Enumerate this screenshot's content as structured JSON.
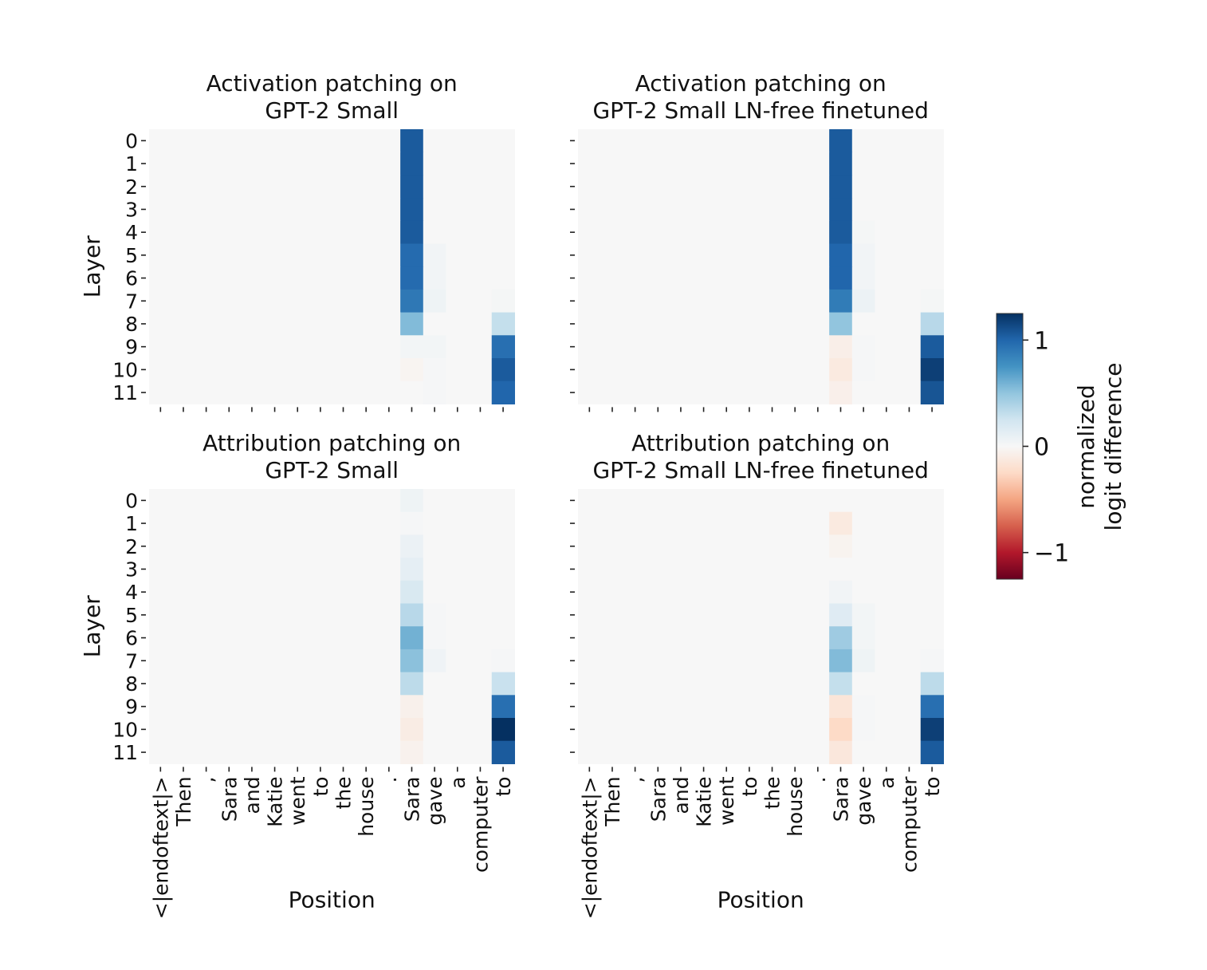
{
  "chart_data": [
    {
      "type": "heatmap",
      "title": "Activation patching on\nGPT-2 Small",
      "xlabel": "",
      "ylabel": "Layer",
      "x_tick_labels_shown": false,
      "y_tick_labels_shown": true,
      "x": [
        "<|endoftext|>",
        "Then",
        ",",
        "Sara",
        "and",
        "Katie",
        "went",
        "to",
        "the",
        "house",
        ".",
        "Sara",
        "gave",
        "a",
        "computer",
        "to"
      ],
      "y": [
        "0",
        "1",
        "2",
        "3",
        "4",
        "5",
        "6",
        "7",
        "8",
        "9",
        "10",
        "11"
      ],
      "values": [
        [
          0,
          0,
          0,
          0,
          0,
          0,
          0,
          0,
          0,
          0,
          0,
          1.05,
          0,
          0,
          0,
          0
        ],
        [
          0,
          0,
          0,
          0,
          0,
          0,
          0,
          0,
          0,
          0,
          0,
          1.05,
          0,
          0,
          0,
          0
        ],
        [
          0,
          0,
          0,
          0,
          0,
          0,
          0,
          0,
          0,
          0,
          0,
          1.05,
          0,
          0,
          0,
          0
        ],
        [
          0,
          0,
          0,
          0,
          0,
          0,
          0,
          0,
          0,
          0,
          0,
          1.05,
          0,
          0,
          0,
          0
        ],
        [
          0,
          0,
          0,
          0,
          0,
          0,
          0,
          0,
          0,
          0,
          0,
          1.05,
          0,
          0,
          0,
          0
        ],
        [
          0,
          0,
          0,
          0,
          0,
          0,
          0,
          0,
          0,
          0,
          0,
          0.97,
          0.04,
          0,
          0,
          0
        ],
        [
          0,
          0,
          0,
          0,
          0,
          0,
          0,
          0,
          0,
          0,
          0,
          0.97,
          0.04,
          0,
          0,
          0
        ],
        [
          0,
          0,
          0,
          0,
          0,
          0,
          0,
          0,
          0,
          0,
          0,
          0.9,
          0.06,
          0,
          0,
          0.02
        ],
        [
          0,
          0,
          0,
          0,
          0,
          0,
          0,
          0,
          0,
          0,
          0,
          0.55,
          0,
          0,
          0,
          0.3
        ],
        [
          0,
          0,
          0,
          0,
          0,
          0,
          0,
          0,
          0,
          0,
          0,
          0.03,
          0.03,
          0,
          0,
          0.95
        ],
        [
          0,
          0,
          0,
          0,
          0,
          0,
          0,
          0,
          0,
          0,
          0,
          -0.03,
          0.01,
          0,
          0,
          1.05
        ],
        [
          0,
          0,
          0,
          0,
          0,
          0,
          0,
          0,
          0,
          0,
          0,
          0,
          0.01,
          0,
          0,
          1.0
        ]
      ]
    },
    {
      "type": "heatmap",
      "title": "Activation patching on\nGPT-2 Small LN-free finetuned",
      "xlabel": "",
      "ylabel": "",
      "x_tick_labels_shown": false,
      "y_tick_labels_shown": false,
      "x": [
        "<|endoftext|>",
        "Then",
        ",",
        "Sara",
        "and",
        "Katie",
        "went",
        "to",
        "the",
        "house",
        ".",
        "Sara",
        "gave",
        "a",
        "computer",
        "to"
      ],
      "y": [
        "0",
        "1",
        "2",
        "3",
        "4",
        "5",
        "6",
        "7",
        "8",
        "9",
        "10",
        "11"
      ],
      "values": [
        [
          0,
          0,
          0,
          0,
          0,
          0,
          0,
          0,
          0,
          0,
          0,
          1.05,
          0,
          0,
          0,
          0
        ],
        [
          0,
          0,
          0,
          0,
          0,
          0,
          0,
          0,
          0,
          0,
          0,
          1.05,
          0,
          0,
          0,
          0
        ],
        [
          0,
          0,
          0,
          0,
          0,
          0,
          0,
          0,
          0,
          0,
          0,
          1.05,
          0,
          0,
          0,
          0
        ],
        [
          0,
          0,
          0,
          0,
          0,
          0,
          0,
          0,
          0,
          0,
          0,
          1.05,
          0,
          0,
          0,
          0
        ],
        [
          0,
          0,
          0,
          0,
          0,
          0,
          0,
          0,
          0,
          0,
          0,
          1.05,
          0.02,
          0,
          0,
          0
        ],
        [
          0,
          0,
          0,
          0,
          0,
          0,
          0,
          0,
          0,
          0,
          0,
          1.0,
          0.04,
          0,
          0,
          0
        ],
        [
          0,
          0,
          0,
          0,
          0,
          0,
          0,
          0,
          0,
          0,
          0,
          1.0,
          0.04,
          0,
          0,
          0
        ],
        [
          0,
          0,
          0,
          0,
          0,
          0,
          0,
          0,
          0,
          0,
          0,
          0.88,
          0.07,
          0,
          0,
          0.02
        ],
        [
          0,
          0,
          0,
          0,
          0,
          0,
          0,
          0,
          0,
          0,
          0,
          0.5,
          0,
          0,
          0,
          0.35
        ],
        [
          0,
          0,
          0,
          0,
          0,
          0,
          0,
          0,
          0,
          0,
          0,
          -0.08,
          0.01,
          0,
          0,
          1.05
        ],
        [
          0,
          0,
          0,
          0,
          0,
          0,
          0,
          0,
          0,
          0,
          0,
          -0.12,
          0.01,
          0,
          0,
          1.18
        ],
        [
          0,
          0,
          0,
          0,
          0,
          0,
          0,
          0,
          0,
          0,
          0,
          -0.07,
          0,
          0,
          0,
          1.08
        ]
      ]
    },
    {
      "type": "heatmap",
      "title": "Attribution patching on\nGPT-2 Small",
      "xlabel": "Position",
      "ylabel": "Layer",
      "x_tick_labels_shown": true,
      "y_tick_labels_shown": true,
      "x": [
        "<|endoftext|>",
        "Then",
        ",",
        "Sara",
        "and",
        "Katie",
        "went",
        "to",
        "the",
        "house",
        ".",
        "Sara",
        "gave",
        "a",
        "computer",
        "to"
      ],
      "y": [
        "0",
        "1",
        "2",
        "3",
        "4",
        "5",
        "6",
        "7",
        "8",
        "9",
        "10",
        "11"
      ],
      "values": [
        [
          0,
          0,
          0,
          0,
          0,
          0,
          0,
          0,
          0,
          0,
          0,
          0.06,
          0,
          0,
          0,
          0
        ],
        [
          0,
          0,
          0,
          0,
          0,
          0,
          0,
          0,
          0,
          0,
          0,
          0.01,
          0,
          0,
          0,
          0
        ],
        [
          0,
          0,
          0,
          0,
          0,
          0,
          0,
          0,
          0,
          0,
          0,
          0.08,
          0,
          0,
          0,
          0
        ],
        [
          0,
          0,
          0,
          0,
          0,
          0,
          0,
          0,
          0,
          0,
          0,
          0.12,
          0,
          0,
          0,
          0
        ],
        [
          0,
          0,
          0,
          0,
          0,
          0,
          0,
          0,
          0,
          0,
          0,
          0.2,
          0,
          0,
          0,
          0
        ],
        [
          0,
          0,
          0,
          0,
          0,
          0,
          0,
          0,
          0,
          0,
          0,
          0.35,
          0.01,
          0,
          0,
          0
        ],
        [
          0,
          0,
          0,
          0,
          0,
          0,
          0,
          0,
          0,
          0,
          0,
          0.6,
          0.01,
          0,
          0,
          0
        ],
        [
          0,
          0,
          0,
          0,
          0,
          0,
          0,
          0,
          0,
          0,
          0,
          0.52,
          0.05,
          0,
          0,
          0.01
        ],
        [
          0,
          0,
          0,
          0,
          0,
          0,
          0,
          0,
          0,
          0,
          0,
          0.33,
          0,
          0,
          0,
          0.28
        ],
        [
          0,
          0,
          0,
          0,
          0,
          0,
          0,
          0,
          0,
          0,
          0,
          -0.06,
          0,
          0,
          0,
          0.95
        ],
        [
          0,
          0,
          0,
          0,
          0,
          0,
          0,
          0,
          0,
          0,
          0,
          -0.1,
          0,
          0,
          0,
          1.45
        ],
        [
          0,
          0,
          0,
          0,
          0,
          0,
          0,
          0,
          0,
          0,
          0,
          -0.05,
          0,
          0,
          0,
          1.05
        ]
      ]
    },
    {
      "type": "heatmap",
      "title": "Attribution patching on\nGPT-2 Small LN-free finetuned",
      "xlabel": "Position",
      "ylabel": "",
      "x_tick_labels_shown": true,
      "y_tick_labels_shown": false,
      "x": [
        "<|endoftext|>",
        "Then",
        ",",
        "Sara",
        "and",
        "Katie",
        "went",
        "to",
        "the",
        "house",
        ".",
        "Sara",
        "gave",
        "a",
        "computer",
        "to"
      ],
      "y": [
        "0",
        "1",
        "2",
        "3",
        "4",
        "5",
        "6",
        "7",
        "8",
        "9",
        "10",
        "11"
      ],
      "values": [
        [
          0,
          0,
          0,
          0,
          0,
          0,
          0,
          0,
          0,
          0,
          0,
          0,
          0,
          0,
          0,
          0
        ],
        [
          0,
          0,
          0,
          0,
          0,
          0,
          0,
          0,
          0,
          0,
          0,
          -0.12,
          0,
          0,
          0,
          0
        ],
        [
          0,
          0,
          0,
          0,
          0,
          0,
          0,
          0,
          0,
          0,
          0,
          -0.04,
          0,
          0,
          0,
          0
        ],
        [
          0,
          0,
          0,
          0,
          0,
          0,
          0,
          0,
          0,
          0,
          0,
          0,
          0,
          0,
          0,
          0
        ],
        [
          0,
          0,
          0,
          0,
          0,
          0,
          0,
          0,
          0,
          0,
          0,
          0.04,
          0,
          0,
          0,
          0
        ],
        [
          0,
          0,
          0,
          0,
          0,
          0,
          0,
          0,
          0,
          0,
          0,
          0.16,
          0.03,
          0,
          0,
          0
        ],
        [
          0,
          0,
          0,
          0,
          0,
          0,
          0,
          0,
          0,
          0,
          0,
          0.45,
          0.03,
          0,
          0,
          0
        ],
        [
          0,
          0,
          0,
          0,
          0,
          0,
          0,
          0,
          0,
          0,
          0,
          0.55,
          0.06,
          0,
          0,
          0.01
        ],
        [
          0,
          0,
          0,
          0,
          0,
          0,
          0,
          0,
          0,
          0,
          0,
          0.3,
          0,
          0,
          0,
          0.33
        ],
        [
          0,
          0,
          0,
          0,
          0,
          0,
          0,
          0,
          0,
          0,
          0,
          -0.16,
          0.01,
          0,
          0,
          0.95
        ],
        [
          0,
          0,
          0,
          0,
          0,
          0,
          0,
          0,
          0,
          0,
          0,
          -0.25,
          0.01,
          0,
          0,
          1.18
        ],
        [
          0,
          0,
          0,
          0,
          0,
          0,
          0,
          0,
          0,
          0,
          0,
          -0.14,
          0,
          0,
          0,
          1.05
        ]
      ]
    }
  ],
  "colorbar": {
    "label": "normalized\nlogit difference",
    "colormap": "RdBu",
    "range": [
      -1.25,
      1.25
    ],
    "ticks": [
      1,
      0,
      -1
    ],
    "tick_labels": [
      "1",
      "0",
      "−1"
    ]
  }
}
